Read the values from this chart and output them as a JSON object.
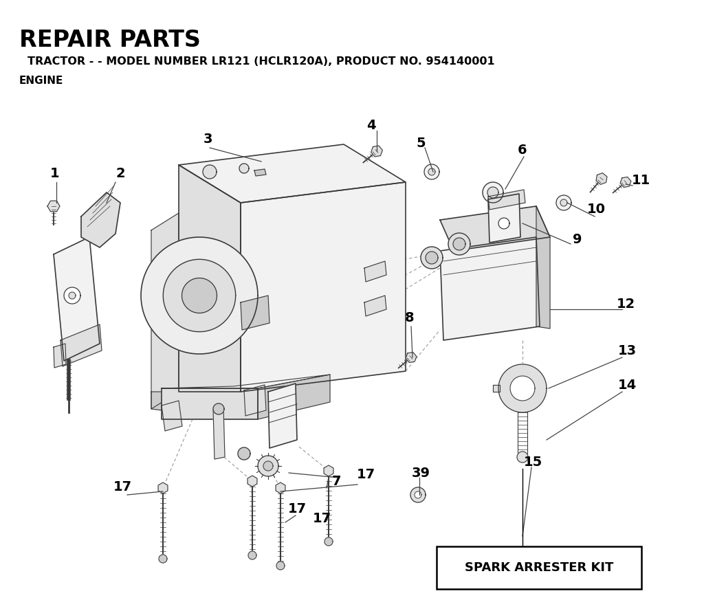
{
  "title": "REPAIR PARTS",
  "subtitle": "TRACTOR - - MODEL NUMBER LR121 (HCLR120A), PRODUCT NO. 954140001",
  "section": "ENGINE",
  "bg_color": "#ffffff",
  "text_color": "#000000",
  "line_color": "#3a3a3a",
  "light_line": "#888888",
  "fill_light": "#f2f2f2",
  "fill_mid": "#e0e0e0",
  "fill_dark": "#cccccc",
  "spark_arrester_text": "SPARK ARRESTER KIT"
}
